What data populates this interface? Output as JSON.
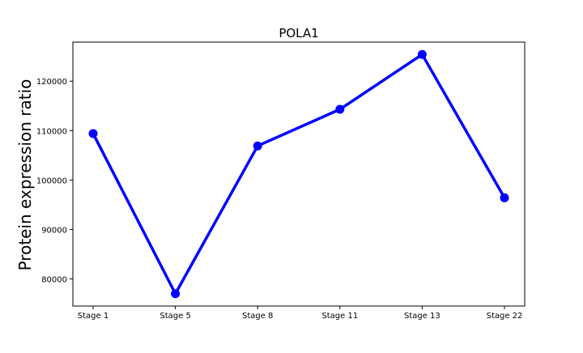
{
  "chart_data": {
    "type": "line",
    "title": "POLA1",
    "xlabel": "",
    "ylabel": "Protein expression ratio",
    "categories": [
      "Stage 1",
      "Stage 5",
      "Stage 8",
      "Stage 11",
      "Stage 13",
      "Stage 22"
    ],
    "series": [
      {
        "values": [
          109400,
          77000,
          106900,
          114300,
          125400,
          96400
        ]
      }
    ],
    "yticks": [
      80000,
      90000,
      100000,
      110000,
      120000
    ],
    "ytick_labels": [
      "80000",
      "90000",
      "100000",
      "110000",
      "120000"
    ],
    "ylim": [
      74500,
      127900
    ],
    "grid": false,
    "colors": {
      "line": "#0000ff",
      "axes": "#000000",
      "background": "#ffffff"
    }
  }
}
